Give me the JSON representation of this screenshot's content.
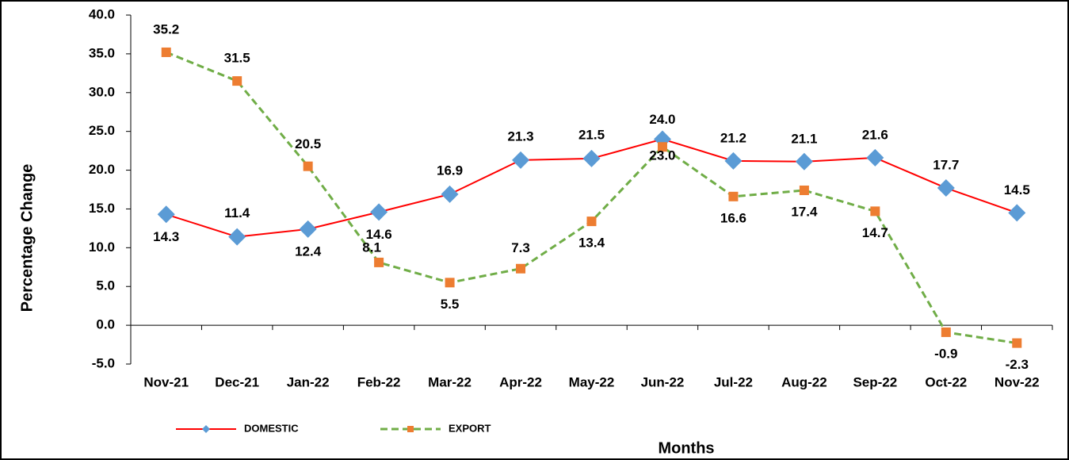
{
  "chart_data": {
    "type": "line",
    "x_label": "Months",
    "y_label": "Percentage Change",
    "categories": [
      "Nov-21",
      "Dec-21",
      "Jan-22",
      "Feb-22",
      "Mar-22",
      "Apr-22",
      "May-22",
      "Jun-22",
      "Jul-22",
      "Aug-22",
      "Sep-22",
      "Oct-22",
      "Nov-22"
    ],
    "series": [
      {
        "name": "DOMESTIC",
        "color": "#ff0000",
        "marker_color": "#5b9bd5",
        "marker": "diamond",
        "dash": false,
        "values": [
          14.3,
          11.4,
          12.4,
          14.6,
          16.9,
          21.3,
          21.5,
          24.0,
          21.2,
          21.1,
          21.6,
          17.7,
          14.5
        ],
        "value_labels": [
          "14.3",
          "11.4",
          "12.4",
          "14.6",
          "16.9",
          "21.3",
          "21.5",
          "24.0",
          "21.2",
          "21.1",
          "21.6",
          "17.7",
          "14.5"
        ]
      },
      {
        "name": "EXPORT",
        "color": "#70ad47",
        "marker_color": "#ed7d31",
        "marker": "square",
        "dash": true,
        "values": [
          35.2,
          31.5,
          20.5,
          8.1,
          5.5,
          7.3,
          13.4,
          23.0,
          16.6,
          17.4,
          14.7,
          -0.9,
          -2.3
        ],
        "value_labels": [
          "35.2",
          "31.5",
          "20.5",
          "8.1",
          "5.5",
          "7.3",
          "13.4",
          "23.0",
          "16.6",
          "17.4",
          "14.7",
          "-0.9",
          "-2.3"
        ]
      }
    ],
    "ylim": [
      -5,
      40
    ],
    "yticks": [
      {
        "value": -5,
        "label": "-5.0"
      },
      {
        "value": 0,
        "label": "0.0"
      },
      {
        "value": 5,
        "label": "5.0"
      },
      {
        "value": 10,
        "label": "10.0"
      },
      {
        "value": 15,
        "label": "15.0"
      },
      {
        "value": 20,
        "label": "20.0"
      },
      {
        "value": 25,
        "label": "25.0"
      },
      {
        "value": 30,
        "label": "30.0"
      },
      {
        "value": 35,
        "label": "35.0"
      },
      {
        "value": 40,
        "label": "40.0"
      }
    ],
    "grid": false,
    "legend": "bottom"
  }
}
